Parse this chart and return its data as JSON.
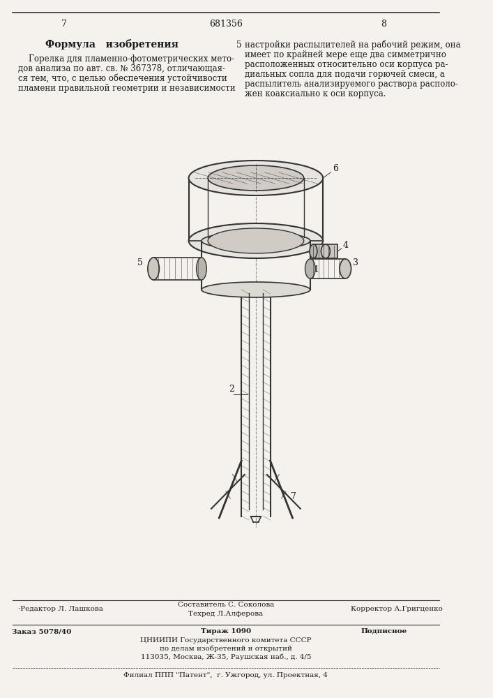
{
  "page_number_left": "7",
  "page_number_right": "8",
  "patent_number": "681356",
  "formula_title": "Формула   изобретения",
  "formula_text": "    Горелка для пламенно-фотометрических мето-\nдов анализа по авт. св. № 367378, отличающая-\nся тем, что, с целью обеспечения устойчивости\nпламени правильной геометрии и независимости",
  "right_text": "настройки распылителей на рабочий режим, она\nимеет по крайней мере еще два симметрично\nрасположенных относительно оси корпуса ра-\nдиальных сопла для подачи горючей смеси, а\nраспылитель анализируемого раствора располо-\nжен коаксиально к оси корпуса.",
  "right_text_num": "5",
  "editor_line": "·Редактор Л. Лашкова",
  "compiler_line": "Составитель С. Соколова",
  "techred_line": "Техред Л.Алферова",
  "corrector_line": "Корректор А.Григценко",
  "order_line": "Заказ 5078/40",
  "circulation_line": "Тираж 1090",
  "subscription_line": "Подписное",
  "org_line": "ЦНИИПИ Государственного комитета СССР",
  "org_line2": "по делам изобретений и открытий",
  "address_line": "113035, Москва, Ж-35, Раушская наб., д. 4/5",
  "branch_line": "Филиал ППП \"Патент\",  г. Ужгород, ул. Проектная, 4",
  "bg_color": "#f5f2ee",
  "text_color": "#1a1a1a",
  "line_color": "#333333"
}
